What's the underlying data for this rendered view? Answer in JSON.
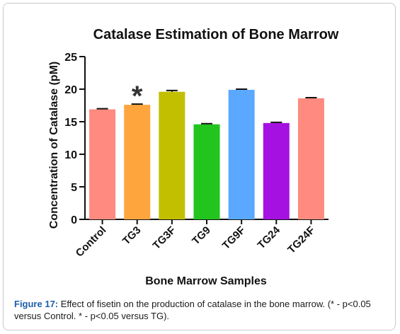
{
  "chart_data": {
    "type": "bar",
    "title": "Catalase Estimation of Bone Marrow",
    "xlabel": "Bone Marrow Samples",
    "ylabel": "Concentration of Catalase (pM)",
    "ylim": [
      0,
      25
    ],
    "yticks": [
      0,
      5,
      10,
      15,
      20,
      25
    ],
    "categories": [
      "Control",
      "TG3",
      "TG3F",
      "TG9",
      "TG9F",
      "TG24",
      "TG24F"
    ],
    "values": [
      16.9,
      17.6,
      19.6,
      14.6,
      19.9,
      14.8,
      18.6
    ],
    "errors": [
      0.1,
      0.1,
      0.2,
      0.1,
      0.1,
      0.1,
      0.1
    ],
    "colors": [
      "#FF8A80",
      "#FFA53E",
      "#C2BE00",
      "#22C41E",
      "#5AA8FF",
      "#A511E0",
      "#FF8A80"
    ],
    "significance": [
      {
        "category": "TG3",
        "symbol": "*"
      }
    ],
    "grid": false,
    "legend": "none"
  },
  "caption": {
    "label": "Figure 17:",
    "text": " Effect of fisetin on the production of catalase in the bone marrow. (* - p<0.05 versus Control. * - p<0.05 versus TG)."
  }
}
